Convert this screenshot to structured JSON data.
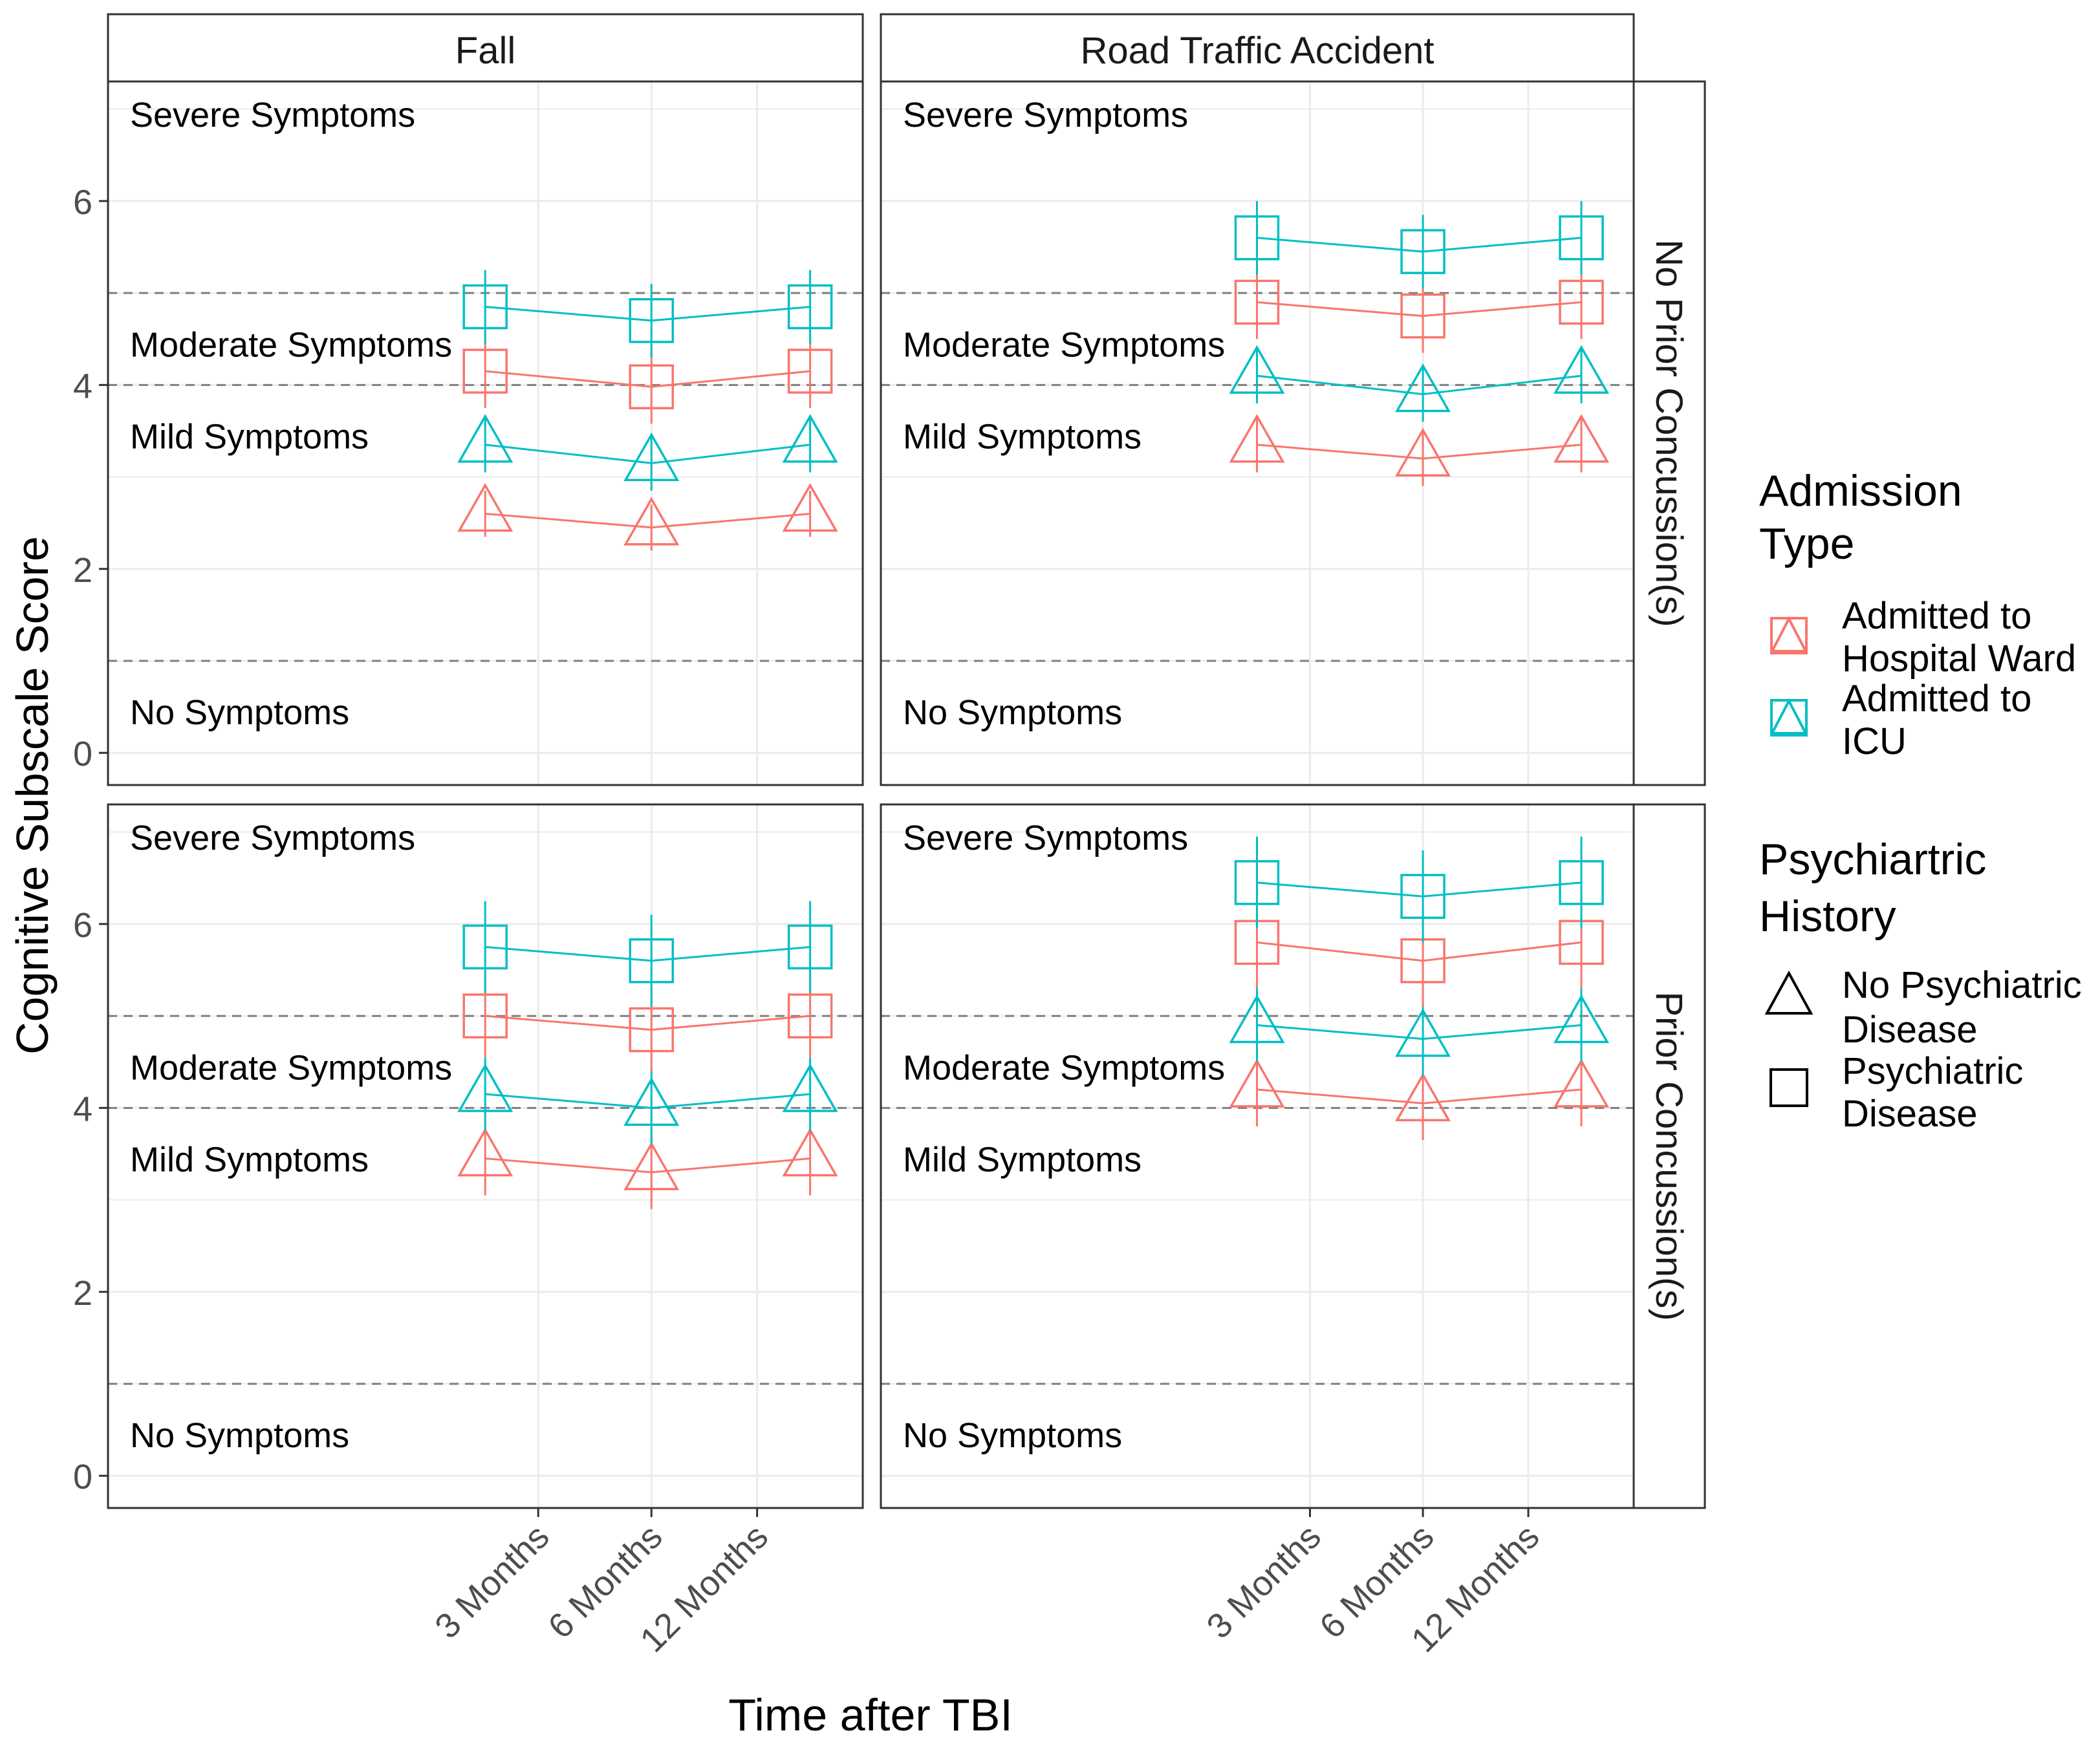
{
  "chart_data": {
    "type": "line",
    "ylabel": "Cognitive Subscale Score",
    "xlabel": "Time after TBI",
    "categories": [
      "3 Months",
      "6 Months",
      "12 Months"
    ],
    "ylim": [
      -0.35,
      7.3
    ],
    "yticks": [
      0,
      2,
      4,
      6
    ],
    "reference_lines": [
      1,
      4,
      5
    ],
    "zone_labels": [
      {
        "text": "Severe Symptoms",
        "y": 6.95
      },
      {
        "text": "Moderate Symptoms",
        "y": 4.45
      },
      {
        "text": "Mild Symptoms",
        "y": 3.45
      },
      {
        "text": "No Symptoms",
        "y": 0.45
      }
    ],
    "columns": [
      "Fall",
      "Road Traffic Accident"
    ],
    "rows": [
      "No Prior Concussion(s)",
      "Prior Concussion(s)"
    ],
    "colors": {
      "ward": "#F8766D",
      "icu": "#00BFC4",
      "grid": "#EBEBEB",
      "ref": "#7F7F7F"
    },
    "panels": [
      {
        "column": "Fall",
        "row": "No Prior Concussion(s)",
        "series": [
          {
            "admission": "ward",
            "shape": "triangle",
            "values": [
              2.6,
              2.45,
              2.6
            ],
            "lower": [
              2.35,
              2.2,
              2.35
            ],
            "upper": [
              2.85,
              2.7,
              2.85
            ]
          },
          {
            "admission": "icu",
            "shape": "triangle",
            "values": [
              3.35,
              3.15,
              3.35
            ],
            "lower": [
              3.05,
              2.85,
              3.05
            ],
            "upper": [
              3.65,
              3.45,
              3.65
            ]
          },
          {
            "admission": "ward",
            "shape": "square",
            "values": [
              4.15,
              3.98,
              4.15
            ],
            "lower": [
              3.75,
              3.58,
              3.75
            ],
            "upper": [
              4.55,
              4.38,
              4.55
            ]
          },
          {
            "admission": "icu",
            "shape": "square",
            "values": [
              4.85,
              4.7,
              4.85
            ],
            "lower": [
              4.45,
              4.3,
              4.45
            ],
            "upper": [
              5.25,
              5.1,
              5.25
            ]
          }
        ]
      },
      {
        "column": "Road Traffic Accident",
        "row": "No Prior Concussion(s)",
        "series": [
          {
            "admission": "ward",
            "shape": "triangle",
            "values": [
              3.35,
              3.2,
              3.35
            ],
            "lower": [
              3.05,
              2.9,
              3.05
            ],
            "upper": [
              3.65,
              3.5,
              3.65
            ]
          },
          {
            "admission": "icu",
            "shape": "triangle",
            "values": [
              4.1,
              3.9,
              4.1
            ],
            "lower": [
              3.8,
              3.6,
              3.8
            ],
            "upper": [
              4.4,
              4.2,
              4.4
            ]
          },
          {
            "admission": "ward",
            "shape": "square",
            "values": [
              4.9,
              4.75,
              4.9
            ],
            "lower": [
              4.5,
              4.35,
              4.5
            ],
            "upper": [
              5.3,
              5.15,
              5.3
            ]
          },
          {
            "admission": "icu",
            "shape": "square",
            "values": [
              5.6,
              5.45,
              5.6
            ],
            "lower": [
              5.2,
              5.05,
              5.2
            ],
            "upper": [
              6.0,
              5.85,
              6.0
            ]
          }
        ]
      },
      {
        "column": "Fall",
        "row": "Prior Concussion(s)",
        "series": [
          {
            "admission": "ward",
            "shape": "triangle",
            "values": [
              3.45,
              3.3,
              3.45
            ],
            "lower": [
              3.05,
              2.9,
              3.05
            ],
            "upper": [
              3.85,
              3.7,
              3.85
            ]
          },
          {
            "admission": "icu",
            "shape": "triangle",
            "values": [
              4.15,
              4.0,
              4.15
            ],
            "lower": [
              3.75,
              3.6,
              3.75
            ],
            "upper": [
              4.55,
              4.4,
              4.55
            ]
          },
          {
            "admission": "ward",
            "shape": "square",
            "values": [
              5.0,
              4.85,
              5.0
            ],
            "lower": [
              4.55,
              4.4,
              4.55
            ],
            "upper": [
              5.45,
              5.3,
              5.45
            ]
          },
          {
            "admission": "icu",
            "shape": "square",
            "values": [
              5.75,
              5.6,
              5.75
            ],
            "lower": [
              5.25,
              5.1,
              5.25
            ],
            "upper": [
              6.25,
              6.1,
              6.25
            ]
          }
        ]
      },
      {
        "column": "Road Traffic Accident",
        "row": "Prior Concussion(s)",
        "series": [
          {
            "admission": "ward",
            "shape": "triangle",
            "values": [
              4.2,
              4.05,
              4.2
            ],
            "lower": [
              3.8,
              3.65,
              3.8
            ],
            "upper": [
              4.6,
              4.45,
              4.6
            ]
          },
          {
            "admission": "icu",
            "shape": "triangle",
            "values": [
              4.9,
              4.75,
              4.9
            ],
            "lower": [
              4.5,
              4.35,
              4.5
            ],
            "upper": [
              5.3,
              5.15,
              5.3
            ]
          },
          {
            "admission": "ward",
            "shape": "square",
            "values": [
              5.8,
              5.6,
              5.8
            ],
            "lower": [
              5.3,
              5.1,
              5.3
            ],
            "upper": [
              6.3,
              6.1,
              6.3
            ]
          },
          {
            "admission": "icu",
            "shape": "square",
            "values": [
              6.45,
              6.3,
              6.45
            ],
            "lower": [
              5.95,
              5.8,
              5.95
            ],
            "upper": [
              6.95,
              6.8,
              6.95
            ]
          }
        ]
      }
    ],
    "legend": {
      "position": "right",
      "admission": {
        "title": "Admission Type",
        "items": [
          {
            "key": "ward",
            "label": "Admitted to Hospital Ward"
          },
          {
            "key": "icu",
            "label": "Admitted to ICU"
          }
        ]
      },
      "history": {
        "title": "Psychiartric History",
        "items": [
          {
            "shape": "triangle",
            "label": "No Psychiatric Disease"
          },
          {
            "shape": "square",
            "label": "Psychiatric Disease"
          }
        ]
      }
    }
  }
}
